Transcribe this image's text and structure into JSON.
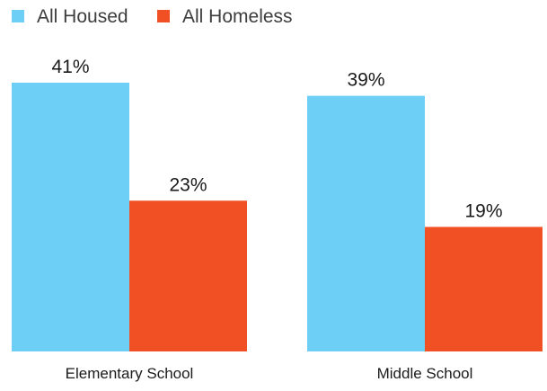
{
  "chart_data": {
    "type": "bar",
    "title": "",
    "xlabel": "",
    "ylabel": "",
    "ylim": [
      0,
      41
    ],
    "grid": false,
    "legend_position": "top-left",
    "categories": [
      "Elementary School",
      "Middle School"
    ],
    "series": [
      {
        "name": "All Housed",
        "values": [
          41,
          39
        ],
        "color": "#6dcff6",
        "value_labels": [
          "41%",
          "39%"
        ]
      },
      {
        "name": "All Homeless",
        "values": [
          23,
          19
        ],
        "color": "#f15025",
        "value_labels": [
          "23%",
          "19%"
        ]
      }
    ]
  }
}
